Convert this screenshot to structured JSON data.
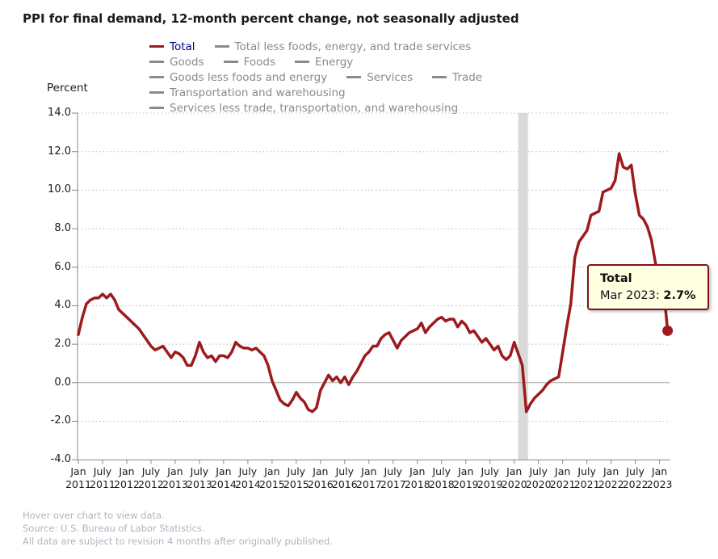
{
  "title": "PPI for final demand, 12-month percent change, not seasonally adjusted",
  "tooltip": {
    "series": "Total",
    "label": "Mar 2023:",
    "value": "2.7%"
  },
  "footer": {
    "lines": [
      "Hover over chart to view data.",
      "Source: U.S. Bureau of Labor Statistics.",
      "All data are subject to revision 4 months after originally published."
    ]
  },
  "legend": {
    "active_text_color": "#00008b",
    "inactive_color": "#8a8a8a",
    "rows": [
      [
        {
          "label": "Total",
          "active": true
        },
        {
          "label": "Total less foods, energy, and trade services",
          "active": false
        }
      ],
      [
        {
          "label": "Goods",
          "active": false
        },
        {
          "label": "Foods",
          "active": false
        },
        {
          "label": "Energy",
          "active": false
        }
      ],
      [
        {
          "label": "Goods less foods and energy",
          "active": false
        },
        {
          "label": "Services",
          "active": false
        },
        {
          "label": "Trade",
          "active": false
        }
      ],
      [
        {
          "label": "Transportation and warehousing",
          "active": false
        }
      ],
      [
        {
          "label": "Services less trade, transportation, and warehousing",
          "active": false
        }
      ]
    ]
  },
  "chart_data": {
    "type": "line",
    "title": "PPI for final demand, 12-month percent change, not seasonally adjusted",
    "ylabel": "Percent",
    "ylim": [
      -4.0,
      14.0
    ],
    "ytick_step": 2.0,
    "grid": "dotted-horizontal",
    "legend_position": "top",
    "x_interval": "monthly",
    "x_start": "Jan 2011",
    "x_end": "Mar 2023",
    "x_ticks": [
      [
        "Jan",
        "2011"
      ],
      [
        "July",
        "2011"
      ],
      [
        "Jan",
        "2012"
      ],
      [
        "July",
        "2012"
      ],
      [
        "Jan",
        "2013"
      ],
      [
        "July",
        "2013"
      ],
      [
        "Jan",
        "2014"
      ],
      [
        "July",
        "2014"
      ],
      [
        "Jan",
        "2015"
      ],
      [
        "July",
        "2015"
      ],
      [
        "Jan",
        "2016"
      ],
      [
        "July",
        "2016"
      ],
      [
        "Jan",
        "2017"
      ],
      [
        "July",
        "2017"
      ],
      [
        "Jan",
        "2018"
      ],
      [
        "July",
        "2018"
      ],
      [
        "Jan",
        "2019"
      ],
      [
        "July",
        "2019"
      ],
      [
        "Jan",
        "2020"
      ],
      [
        "July",
        "2020"
      ],
      [
        "Jan",
        "2021"
      ],
      [
        "July",
        "2021"
      ],
      [
        "Jan",
        "2022"
      ],
      [
        "July",
        "2022"
      ],
      [
        "Jan",
        "2023"
      ]
    ],
    "recession_band": {
      "from": "Feb 2020",
      "to": "Apr 2020",
      "from_index": 109,
      "to_index": 111,
      "color": "#d9d9d9"
    },
    "series": [
      {
        "name": "Total",
        "color": "#9c1b1e",
        "values": [
          2.5,
          3.4,
          4.1,
          4.3,
          4.4,
          4.4,
          4.6,
          4.4,
          4.6,
          4.3,
          3.8,
          3.6,
          3.4,
          3.2,
          3.0,
          2.8,
          2.5,
          2.2,
          1.9,
          1.7,
          1.8,
          1.9,
          1.6,
          1.3,
          1.6,
          1.5,
          1.3,
          0.9,
          0.9,
          1.4,
          2.1,
          1.6,
          1.3,
          1.4,
          1.1,
          1.4,
          1.4,
          1.3,
          1.6,
          2.1,
          1.9,
          1.8,
          1.8,
          1.7,
          1.8,
          1.6,
          1.4,
          0.9,
          0.1,
          -0.4,
          -0.9,
          -1.1,
          -1.2,
          -0.9,
          -0.5,
          -0.8,
          -1.0,
          -1.4,
          -1.5,
          -1.3,
          -0.4,
          0.0,
          0.4,
          0.1,
          0.3,
          0.0,
          0.3,
          -0.1,
          0.3,
          0.6,
          1.0,
          1.4,
          1.6,
          1.9,
          1.9,
          2.3,
          2.5,
          2.6,
          2.2,
          1.8,
          2.2,
          2.4,
          2.6,
          2.7,
          2.8,
          3.1,
          2.6,
          2.9,
          3.1,
          3.3,
          3.4,
          3.2,
          3.3,
          3.3,
          2.9,
          3.2,
          3.0,
          2.6,
          2.7,
          2.4,
          2.1,
          2.3,
          2.0,
          1.7,
          1.9,
          1.4,
          1.2,
          1.4,
          2.1,
          1.5,
          0.9,
          -1.5,
          -1.1,
          -0.8,
          -0.6,
          -0.4,
          -0.1,
          0.1,
          0.2,
          0.3,
          1.6,
          2.9,
          4.1,
          6.5,
          7.3,
          7.6,
          7.9,
          8.7,
          8.8,
          8.9,
          9.9,
          10.0,
          10.1,
          10.5,
          11.9,
          11.2,
          11.1,
          11.3,
          9.8,
          8.7,
          8.5,
          8.1,
          7.4,
          6.2,
          5.7,
          4.9,
          2.7
        ]
      }
    ],
    "highlight_point": {
      "series": "Total",
      "x": "Mar 2023",
      "value": 2.7
    }
  }
}
